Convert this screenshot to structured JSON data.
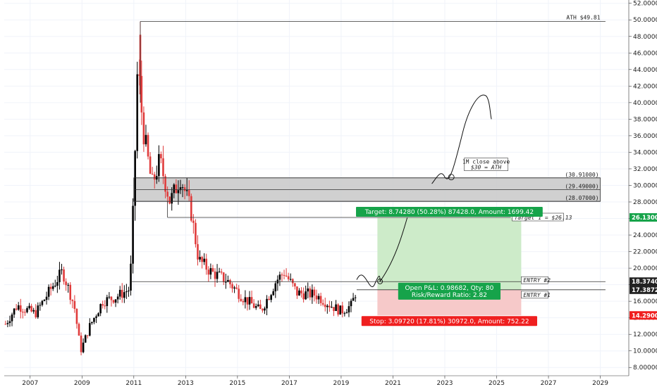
{
  "chart_data": {
    "type": "candlestick",
    "timeframe_note": "monthly candles",
    "colors": {
      "up": "#000000",
      "down": "#e03b3b",
      "target_zone": "#cdebc9",
      "stop_zone": "#f6c9c9",
      "resistance_zone": "#c8c8c8",
      "target_label": "#16a34a",
      "stop_label": "#ef1f1f"
    },
    "x_axis": {
      "range": [
        2006.0,
        2030.1
      ],
      "ticks": [
        "2007",
        "2009",
        "2011",
        "2013",
        "2015",
        "2017",
        "2019",
        "2021",
        "2023",
        "2025",
        "2027",
        "2029"
      ],
      "tick_values": [
        2007,
        2009,
        2011,
        2013,
        2015,
        2017,
        2019,
        2021,
        2023,
        2025,
        2027,
        2029
      ]
    },
    "y_axis": {
      "range": [
        7.0,
        52.4
      ],
      "position": "right",
      "ticks": [
        "8.00000",
        "10.00000",
        "12.00000",
        "14.00000",
        "16.00000",
        "18.00000",
        "20.00000",
        "22.00000",
        "24.00000",
        "26.00000",
        "28.00000",
        "30.00000",
        "32.00000",
        "34.00000",
        "36.00000",
        "38.00000",
        "40.00000",
        "42.00000",
        "44.00000",
        "46.00000",
        "48.00000",
        "50.00000",
        "52.00000"
      ],
      "tick_values": [
        8,
        10,
        12,
        14,
        16,
        18,
        20,
        22,
        24,
        26,
        28,
        30,
        32,
        34,
        36,
        38,
        40,
        42,
        44,
        46,
        48,
        50,
        52
      ]
    },
    "price_path": [
      {
        "x": 2006.0,
        "y": 13.0
      },
      {
        "x": 2006.5,
        "y": 15.5
      },
      {
        "x": 2007.2,
        "y": 14.5
      },
      {
        "x": 2007.8,
        "y": 17.5
      },
      {
        "x": 2008.25,
        "y": 19.6
      },
      {
        "x": 2008.7,
        "y": 15.5
      },
      {
        "x": 2008.95,
        "y": 10.0
      },
      {
        "x": 2009.3,
        "y": 13.0
      },
      {
        "x": 2009.8,
        "y": 16.0
      },
      {
        "x": 2010.3,
        "y": 16.5
      },
      {
        "x": 2010.85,
        "y": 17.5
      },
      {
        "x": 2011.0,
        "y": 29.0
      },
      {
        "x": 2011.15,
        "y": 45.0
      },
      {
        "x": 2011.35,
        "y": 37.0
      },
      {
        "x": 2011.7,
        "y": 30.0
      },
      {
        "x": 2012.0,
        "y": 33.0
      },
      {
        "x": 2012.4,
        "y": 28.0
      },
      {
        "x": 2012.8,
        "y": 31.0
      },
      {
        "x": 2013.2,
        "y": 27.0
      },
      {
        "x": 2013.5,
        "y": 21.0
      },
      {
        "x": 2014.0,
        "y": 19.5
      },
      {
        "x": 2014.6,
        "y": 18.5
      },
      {
        "x": 2015.2,
        "y": 16.5
      },
      {
        "x": 2015.9,
        "y": 14.8
      },
      {
        "x": 2016.5,
        "y": 18.5
      },
      {
        "x": 2016.8,
        "y": 19.5
      },
      {
        "x": 2017.3,
        "y": 17.0
      },
      {
        "x": 2018.0,
        "y": 16.8
      },
      {
        "x": 2018.6,
        "y": 15.5
      },
      {
        "x": 2019.0,
        "y": 14.8
      },
      {
        "x": 2019.4,
        "y": 15.5
      },
      {
        "x": 2019.6,
        "y": 17.5
      }
    ],
    "levels": [
      {
        "name": "ath",
        "value": 49.81,
        "label": "ATH $49.81",
        "x_start": 2011.25
      },
      {
        "name": "zone-top",
        "value": 30.91,
        "label": "(30.91000)",
        "x_start": 2011.0
      },
      {
        "name": "zone-mid",
        "value": 29.49,
        "label": "(29.49000)",
        "x_start": 2011.0
      },
      {
        "name": "zone-bottom",
        "value": 28.07,
        "label": "(28.07000)",
        "x_start": 2011.0
      },
      {
        "name": "target-1",
        "value": 26.13,
        "label": "Target 1 = $26.13",
        "x_start": 2012.3
      },
      {
        "name": "entry-2",
        "value": 18.374,
        "label": "ENTRY #2",
        "x_start": 2010.9
      },
      {
        "name": "entry-1",
        "value": 17.3872,
        "label": "ENTRY #1",
        "x_start": 2019.6
      }
    ],
    "price_badges": [
      {
        "value": 26.13,
        "label": "26.13000",
        "color": "#16a34a"
      },
      {
        "value": 18.374,
        "label": "18.37402",
        "color": "#222222"
      },
      {
        "value": 17.3872,
        "label": "17.38720",
        "color": "#222222"
      },
      {
        "value": 14.29,
        "label": "14.29000",
        "color": "#ef1f1f"
      }
    ],
    "position": {
      "x_start": 2020.4,
      "x_end": 2025.95,
      "entry": 17.3872,
      "target": 26.13,
      "stop": 14.29,
      "target_label": "Target: 8.74280 (50.28%) 87428.0, Amount: 1699.42",
      "pnl_label_1": "Open P&L: 0.98682, Qty: 80",
      "pnl_label_2": "Risk/Reward Ratio: 2.82",
      "stop_label": "Stop: 3.09720 (17.81%) 30972.0, Amount: 752.22"
    },
    "annotation": {
      "line_1": "1M close above",
      "line_2": "$30 = ATH"
    }
  }
}
